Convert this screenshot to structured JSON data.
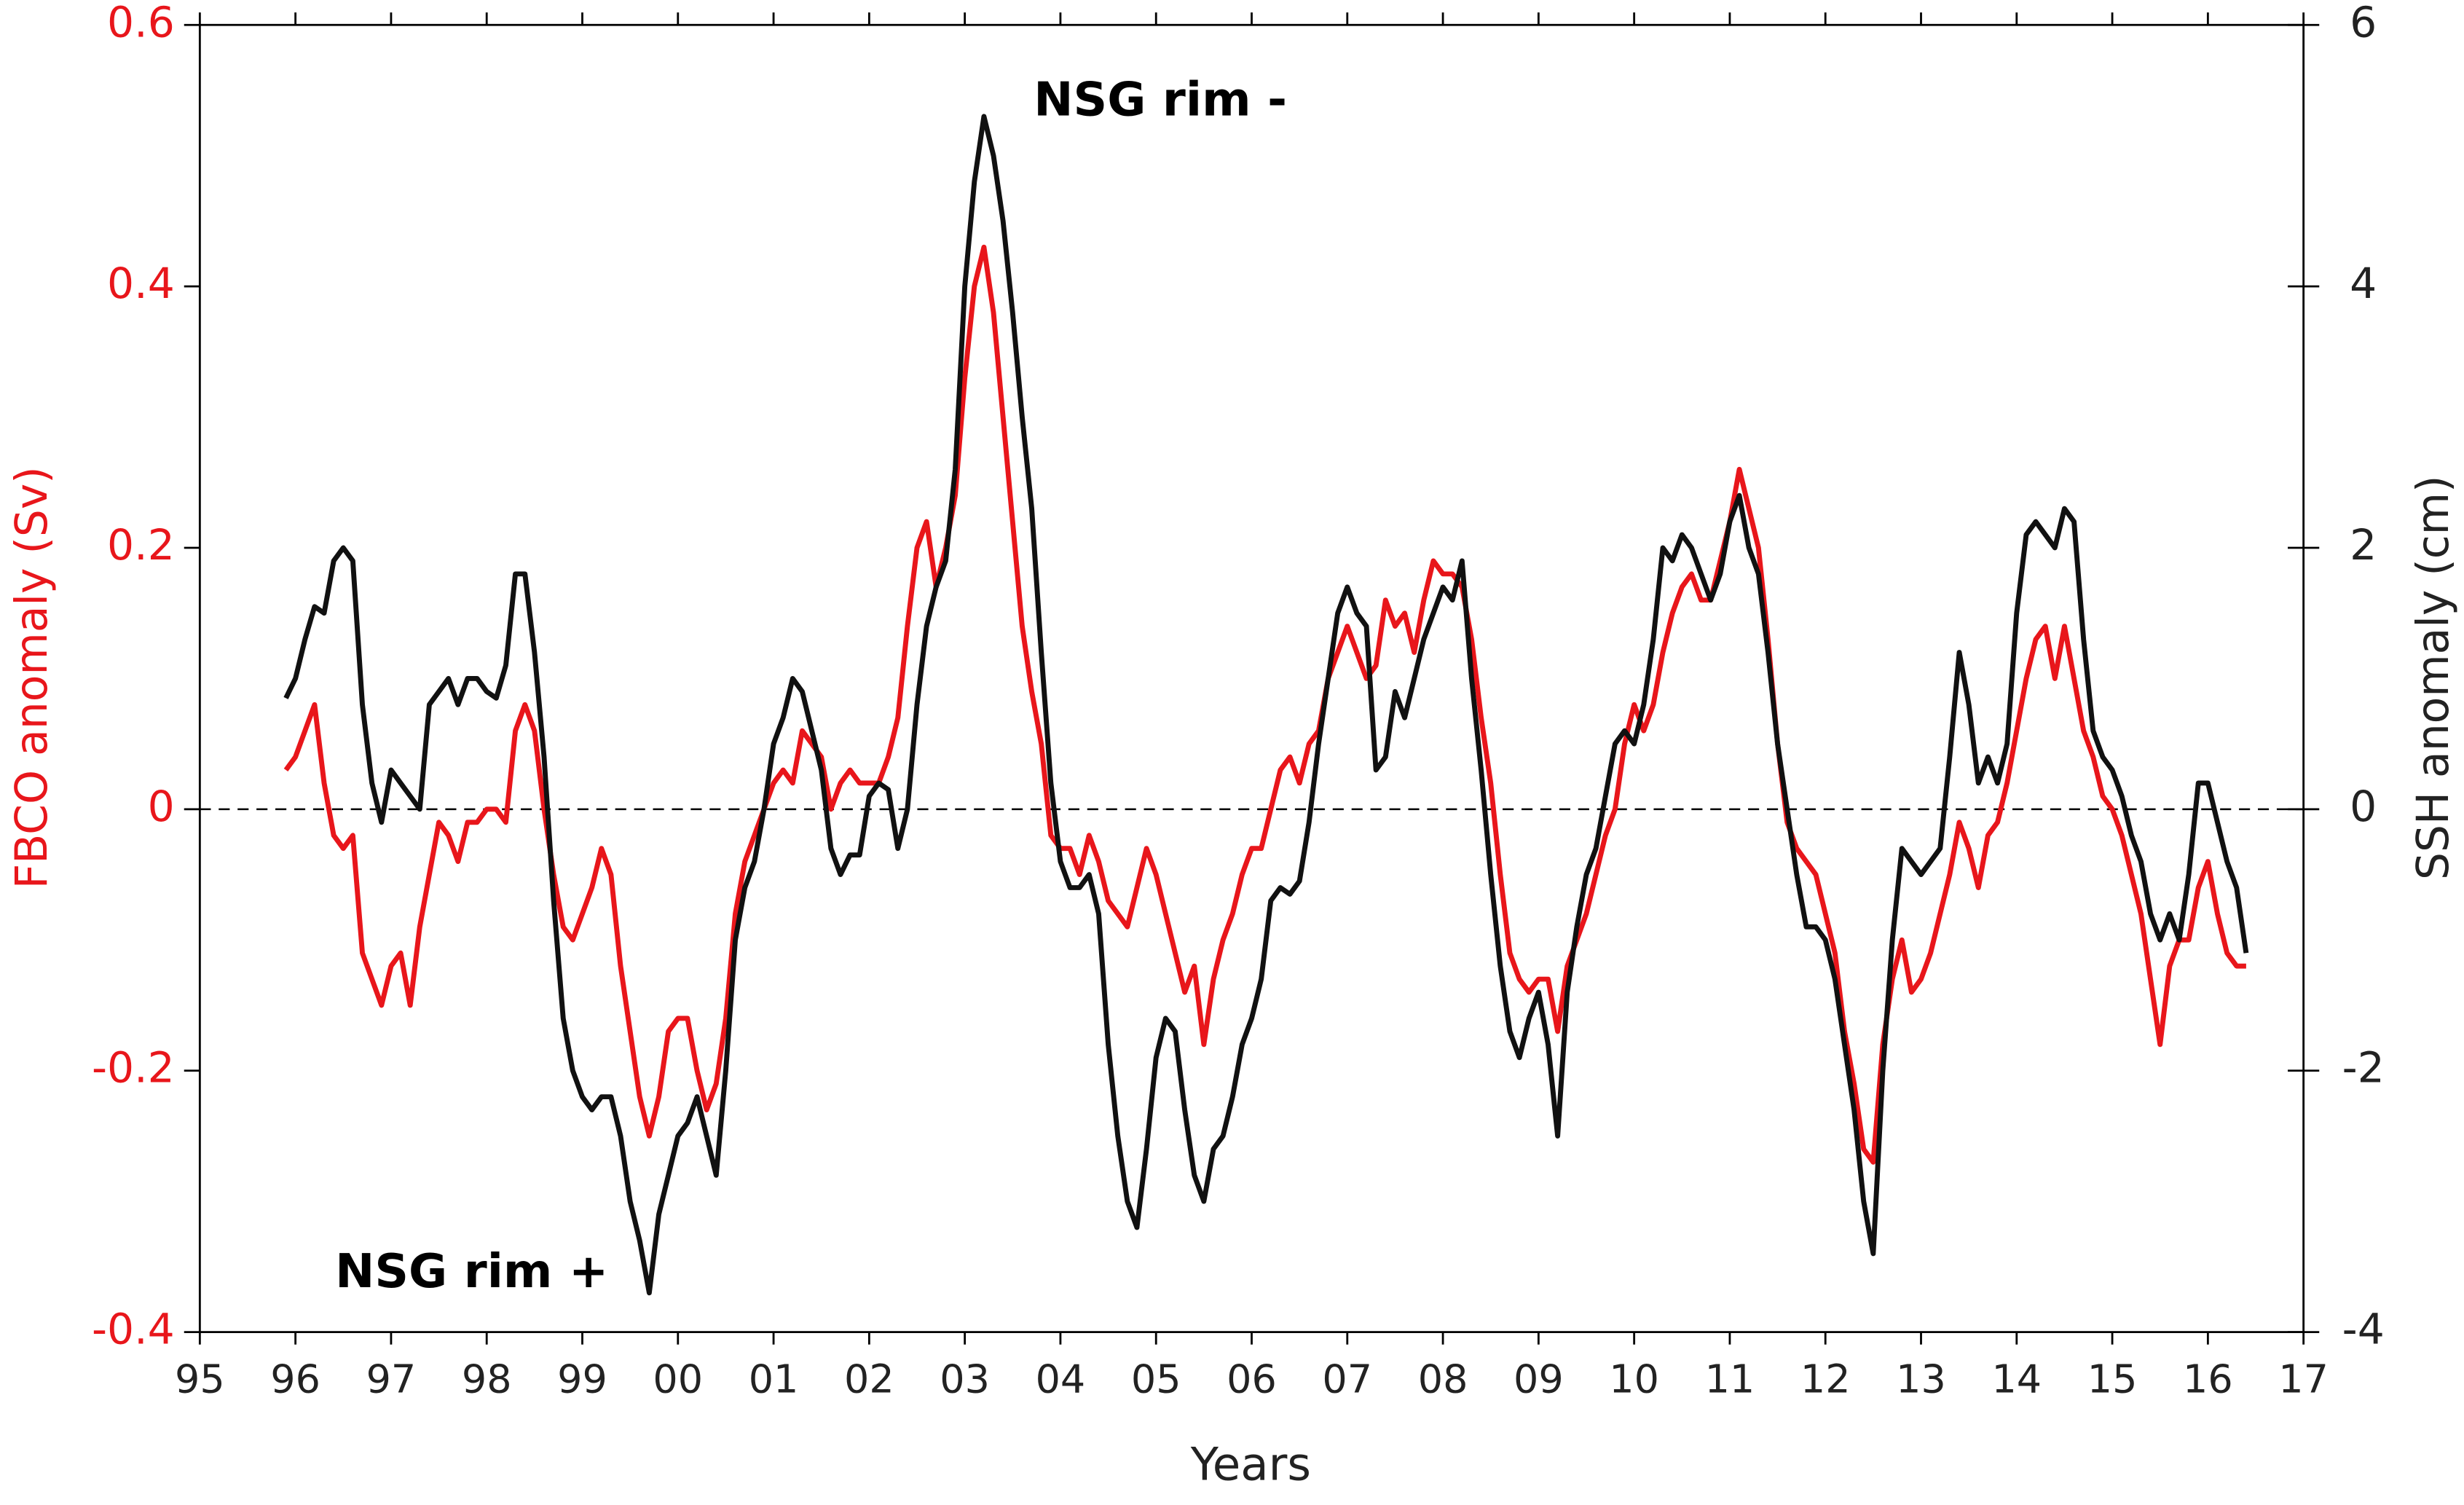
{
  "chart_data": {
    "type": "line",
    "xlabel": "Years",
    "ylabel": "FBCO anomaly (Sv)",
    "y2label": "SSH anomaly (cm)",
    "annotations": [
      "NSG rim -",
      "NSG rim +"
    ],
    "xlim": [
      1995,
      2017
    ],
    "xticks": [
      {
        "value": 1995,
        "label": "95"
      },
      {
        "value": 1996,
        "label": "96"
      },
      {
        "value": 1997,
        "label": "97"
      },
      {
        "value": 1998,
        "label": "98"
      },
      {
        "value": 1999,
        "label": "99"
      },
      {
        "value": 2000,
        "label": "00"
      },
      {
        "value": 2001,
        "label": "01"
      },
      {
        "value": 2002,
        "label": "02"
      },
      {
        "value": 2003,
        "label": "03"
      },
      {
        "value": 2004,
        "label": "04"
      },
      {
        "value": 2005,
        "label": "05"
      },
      {
        "value": 2006,
        "label": "06"
      },
      {
        "value": 2007,
        "label": "07"
      },
      {
        "value": 2008,
        "label": "08"
      },
      {
        "value": 2009,
        "label": "09"
      },
      {
        "value": 2010,
        "label": "10"
      },
      {
        "value": 2011,
        "label": "11"
      },
      {
        "value": 2012,
        "label": "12"
      },
      {
        "value": 2013,
        "label": "13"
      },
      {
        "value": 2014,
        "label": "14"
      },
      {
        "value": 2015,
        "label": "15"
      },
      {
        "value": 2016,
        "label": "16"
      },
      {
        "value": 2017,
        "label": "17"
      }
    ],
    "ylim": [
      -0.4,
      0.6
    ],
    "yticks": [
      -0.4,
      -0.2,
      0,
      0.2,
      0.4,
      0.6
    ],
    "y2lim": [
      -4,
      6
    ],
    "y2ticks": [
      -4,
      -2,
      0,
      2,
      4,
      6
    ],
    "zero_line": true,
    "ylabel_color": "#e8161b",
    "x": [
      1995.9,
      1996.0,
      1996.1,
      1996.2,
      1996.3,
      1996.4,
      1996.5,
      1996.6,
      1996.7,
      1996.8,
      1996.9,
      1997.0,
      1997.1,
      1997.2,
      1997.3,
      1997.4,
      1997.5,
      1997.6,
      1997.7,
      1997.8,
      1997.9,
      1998.0,
      1998.1,
      1998.2,
      1998.3,
      1998.4,
      1998.5,
      1998.6,
      1998.7,
      1998.8,
      1998.9,
      1999.0,
      1999.1,
      1999.2,
      1999.3,
      1999.4,
      1999.5,
      1999.6,
      1999.7,
      1999.8,
      1999.9,
      2000.0,
      2000.1,
      2000.2,
      2000.3,
      2000.4,
      2000.5,
      2000.6,
      2000.7,
      2000.8,
      2000.9,
      2001.0,
      2001.1,
      2001.2,
      2001.3,
      2001.4,
      2001.5,
      2001.6,
      2001.7,
      2001.8,
      2001.9,
      2002.0,
      2002.1,
      2002.2,
      2002.3,
      2002.4,
      2002.5,
      2002.6,
      2002.7,
      2002.8,
      2002.9,
      2003.0,
      2003.1,
      2003.2,
      2003.3,
      2003.4,
      2003.5,
      2003.6,
      2003.7,
      2003.8,
      2003.9,
      2004.0,
      2004.1,
      2004.2,
      2004.3,
      2004.4,
      2004.5,
      2004.6,
      2004.7,
      2004.8,
      2004.9,
      2005.0,
      2005.1,
      2005.2,
      2005.3,
      2005.4,
      2005.5,
      2005.6,
      2005.7,
      2005.8,
      2005.9,
      2006.0,
      2006.1,
      2006.2,
      2006.3,
      2006.4,
      2006.5,
      2006.6,
      2006.7,
      2006.8,
      2006.9,
      2007.0,
      2007.1,
      2007.2,
      2007.3,
      2007.4,
      2007.5,
      2007.6,
      2007.7,
      2007.8,
      2007.9,
      2008.0,
      2008.1,
      2008.2,
      2008.3,
      2008.4,
      2008.5,
      2008.6,
      2008.7,
      2008.8,
      2008.9,
      2009.0,
      2009.1,
      2009.2,
      2009.3,
      2009.4,
      2009.5,
      2009.6,
      2009.7,
      2009.8,
      2009.9,
      2010.0,
      2010.1,
      2010.2,
      2010.3,
      2010.4,
      2010.5,
      2010.6,
      2010.7,
      2010.8,
      2010.9,
      2011.0,
      2011.1,
      2011.2,
      2011.3,
      2011.4,
      2011.5,
      2011.6,
      2011.7,
      2011.8,
      2011.9,
      2012.0,
      2012.1,
      2012.2,
      2012.3,
      2012.4,
      2012.5,
      2012.6,
      2012.7,
      2012.8,
      2012.9,
      2013.0,
      2013.1,
      2013.2,
      2013.3,
      2013.4,
      2013.5,
      2013.6,
      2013.7,
      2013.8,
      2013.9,
      2014.0,
      2014.1,
      2014.2,
      2014.3,
      2014.4,
      2014.5,
      2014.6,
      2014.7,
      2014.8,
      2014.9,
      2015.0,
      2015.1,
      2015.2,
      2015.3,
      2015.4,
      2015.5,
      2015.6,
      2015.7,
      2015.8,
      2015.9,
      2016.0,
      2016.1,
      2016.2,
      2016.3,
      2016.4
    ],
    "series": [
      {
        "color": "#e8161b",
        "values": [
          0.03,
          0.04,
          0.06,
          0.08,
          0.02,
          -0.02,
          -0.03,
          -0.02,
          -0.11,
          -0.13,
          -0.15,
          -0.12,
          -0.11,
          -0.15,
          -0.09,
          -0.05,
          -0.01,
          -0.02,
          -0.04,
          -0.01,
          -0.01,
          0.0,
          0.0,
          -0.01,
          0.06,
          0.08,
          0.06,
          0.0,
          -0.05,
          -0.09,
          -0.1,
          -0.08,
          -0.06,
          -0.03,
          -0.05,
          -0.12,
          -0.17,
          -0.22,
          -0.25,
          -0.22,
          -0.17,
          -0.16,
          -0.16,
          -0.2,
          -0.23,
          -0.21,
          -0.16,
          -0.08,
          -0.04,
          -0.02,
          0.0,
          0.02,
          0.03,
          0.02,
          0.06,
          0.05,
          0.04,
          0.0,
          0.02,
          0.03,
          0.02,
          0.02,
          0.02,
          0.04,
          0.07,
          0.14,
          0.2,
          0.22,
          0.17,
          0.2,
          0.24,
          0.33,
          0.4,
          0.43,
          0.38,
          0.3,
          0.22,
          0.14,
          0.09,
          0.05,
          -0.02,
          -0.03,
          -0.03,
          -0.05,
          -0.02,
          -0.04,
          -0.07,
          -0.08,
          -0.09,
          -0.06,
          -0.03,
          -0.05,
          -0.08,
          -0.11,
          -0.14,
          -0.12,
          -0.18,
          -0.13,
          -0.1,
          -0.08,
          -0.05,
          -0.03,
          -0.03,
          0.0,
          0.03,
          0.04,
          0.02,
          0.05,
          0.06,
          0.1,
          0.12,
          0.14,
          0.12,
          0.1,
          0.11,
          0.16,
          0.14,
          0.15,
          0.12,
          0.16,
          0.19,
          0.18,
          0.18,
          0.17,
          0.13,
          0.07,
          0.02,
          -0.05,
          -0.11,
          -0.13,
          -0.14,
          -0.13,
          -0.13,
          -0.17,
          -0.12,
          -0.1,
          -0.08,
          -0.05,
          -0.02,
          0.0,
          0.05,
          0.08,
          0.06,
          0.08,
          0.12,
          0.15,
          0.17,
          0.18,
          0.16,
          0.16,
          0.19,
          0.22,
          0.26,
          0.23,
          0.2,
          0.13,
          0.05,
          -0.01,
          -0.03,
          -0.04,
          -0.05,
          -0.08,
          -0.11,
          -0.17,
          -0.21,
          -0.26,
          -0.27,
          -0.18,
          -0.13,
          -0.1,
          -0.14,
          -0.13,
          -0.11,
          -0.08,
          -0.05,
          -0.01,
          -0.03,
          -0.06,
          -0.02,
          -0.01,
          0.02,
          0.06,
          0.1,
          0.13,
          0.14,
          0.1,
          0.14,
          0.1,
          0.06,
          0.04,
          0.01,
          0.0,
          -0.02,
          -0.05,
          -0.08,
          -0.13,
          -0.18,
          -0.12,
          -0.1,
          -0.1,
          -0.06,
          -0.04,
          -0.08,
          -0.11,
          -0.12,
          -0.12
        ]
      },
      {
        "color": "#111111",
        "axis": "y2",
        "values": [
          0.85,
          1.0,
          1.3,
          1.55,
          1.5,
          1.9,
          2.0,
          1.9,
          0.8,
          0.2,
          -0.1,
          0.3,
          0.2,
          0.1,
          0.0,
          0.8,
          0.9,
          1.0,
          0.8,
          1.0,
          1.0,
          0.9,
          0.85,
          1.1,
          1.8,
          1.8,
          1.2,
          0.4,
          -0.7,
          -1.6,
          -2.0,
          -2.2,
          -2.3,
          -2.2,
          -2.2,
          -2.5,
          -3.0,
          -3.3,
          -3.7,
          -3.1,
          -2.8,
          -2.5,
          -2.4,
          -2.2,
          -2.5,
          -2.8,
          -2.0,
          -1.0,
          -0.6,
          -0.4,
          0.0,
          0.5,
          0.7,
          1.0,
          0.9,
          0.6,
          0.3,
          -0.3,
          -0.5,
          -0.35,
          -0.35,
          0.1,
          0.2,
          0.15,
          -0.3,
          0.0,
          0.8,
          1.4,
          1.7,
          1.9,
          2.6,
          4.0,
          4.8,
          5.3,
          5.0,
          4.5,
          3.8,
          3.0,
          2.3,
          1.2,
          0.2,
          -0.4,
          -0.6,
          -0.6,
          -0.5,
          -0.8,
          -1.8,
          -2.5,
          -3.0,
          -3.2,
          -2.6,
          -1.9,
          -1.6,
          -1.7,
          -2.3,
          -2.8,
          -3.0,
          -2.6,
          -2.5,
          -2.2,
          -1.8,
          -1.6,
          -1.3,
          -0.7,
          -0.6,
          -0.65,
          -0.55,
          -0.1,
          0.5,
          1.0,
          1.5,
          1.7,
          1.5,
          1.4,
          0.3,
          0.4,
          0.9,
          0.7,
          1.0,
          1.3,
          1.5,
          1.7,
          1.6,
          1.9,
          1.0,
          0.3,
          -0.5,
          -1.2,
          -1.7,
          -1.9,
          -1.6,
          -1.4,
          -1.8,
          -2.5,
          -1.4,
          -0.9,
          -0.5,
          -0.3,
          0.1,
          0.5,
          0.6,
          0.5,
          0.8,
          1.3,
          2.0,
          1.9,
          2.1,
          2.0,
          1.8,
          1.6,
          1.8,
          2.2,
          2.4,
          2.0,
          1.8,
          1.2,
          0.5,
          0.0,
          -0.5,
          -0.9,
          -0.9,
          -1.0,
          -1.3,
          -1.8,
          -2.3,
          -3.0,
          -3.4,
          -2.0,
          -1.0,
          -0.3,
          -0.4,
          -0.5,
          -0.4,
          -0.3,
          0.4,
          1.2,
          0.8,
          0.2,
          0.4,
          0.2,
          0.5,
          1.5,
          2.1,
          2.2,
          2.1,
          2.0,
          2.3,
          2.2,
          1.3,
          0.6,
          0.4,
          0.3,
          0.1,
          -0.2,
          -0.4,
          -0.8,
          -1.0,
          -0.8,
          -1.0,
          -0.5,
          0.2,
          0.2,
          -0.1,
          -0.4,
          -0.6,
          -1.1
        ]
      }
    ]
  }
}
